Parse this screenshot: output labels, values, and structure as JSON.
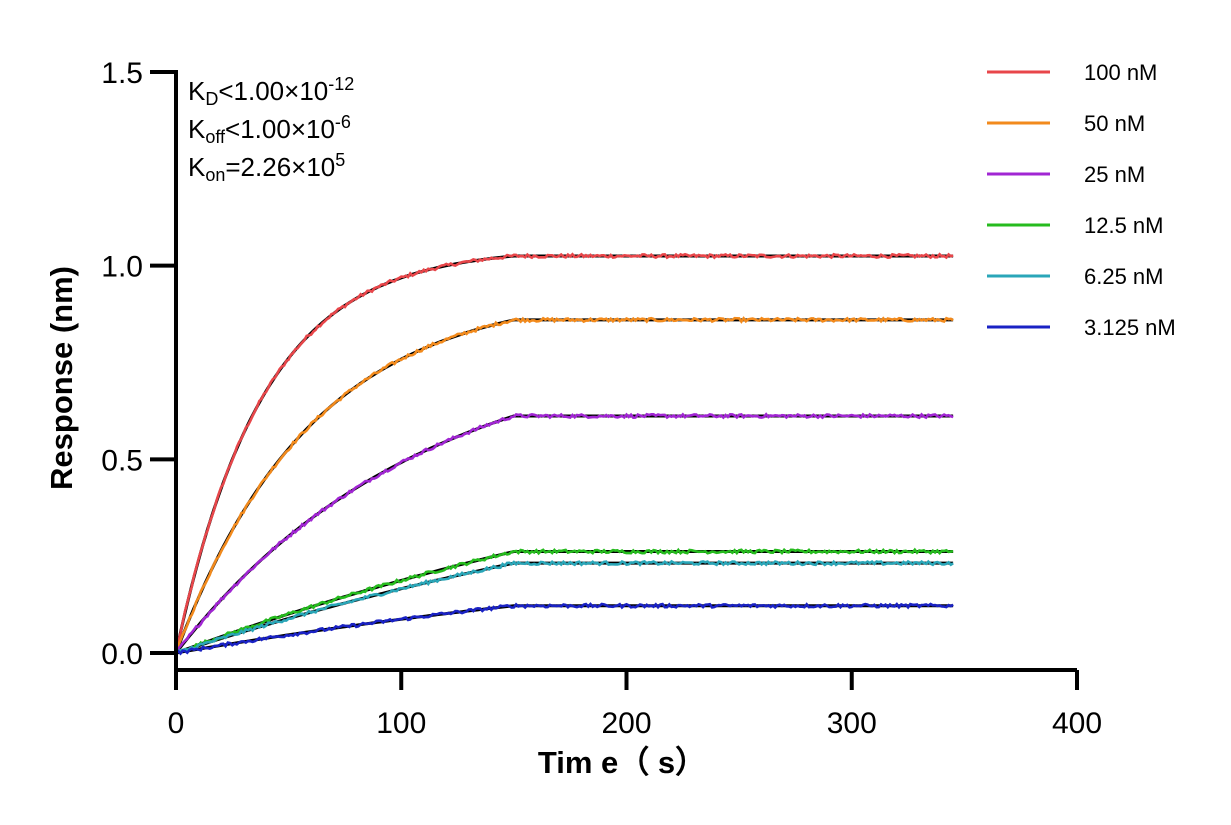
{
  "chart_data": {
    "type": "line",
    "xlabel": "Tim e（ s）",
    "ylabel": "Response (nm)",
    "xlim": [
      0,
      400
    ],
    "ylim": [
      0,
      1.5
    ],
    "x_ticks": [
      "0",
      "100",
      "200",
      "300",
      "400"
    ],
    "y_ticks": [
      "0.0",
      "0.5",
      "1.0",
      "1.5"
    ],
    "association_end": 150,
    "x_end": 345,
    "annotations": [
      {
        "main": "K",
        "sub": "D",
        "rest": "<1.00×10",
        "sup": "-12"
      },
      {
        "main": "K",
        "sub": "off",
        "rest": "<1.00×10",
        "sup": "-6"
      },
      {
        "main": "K",
        "sub": "on",
        "rest": "=2.26×10",
        "sup": "5"
      }
    ],
    "fit_color": "#000000",
    "legend_position": "right",
    "series": [
      {
        "name": "100 nM",
        "color": "#e8464a",
        "plateau": 1.025
      },
      {
        "name": "50 nM",
        "color": "#f28a1c",
        "plateau": 0.86
      },
      {
        "name": "25 nM",
        "color": "#a126d3",
        "plateau": 0.612
      },
      {
        "name": "12.5 nM",
        "color": "#26bb1e",
        "plateau": 0.262
      },
      {
        "name": "6.25 nM",
        "color": "#2aa6b8",
        "plateau": 0.232
      },
      {
        "name": "3.125 nM",
        "color": "#1a22c4",
        "plateau": 0.122
      }
    ]
  }
}
